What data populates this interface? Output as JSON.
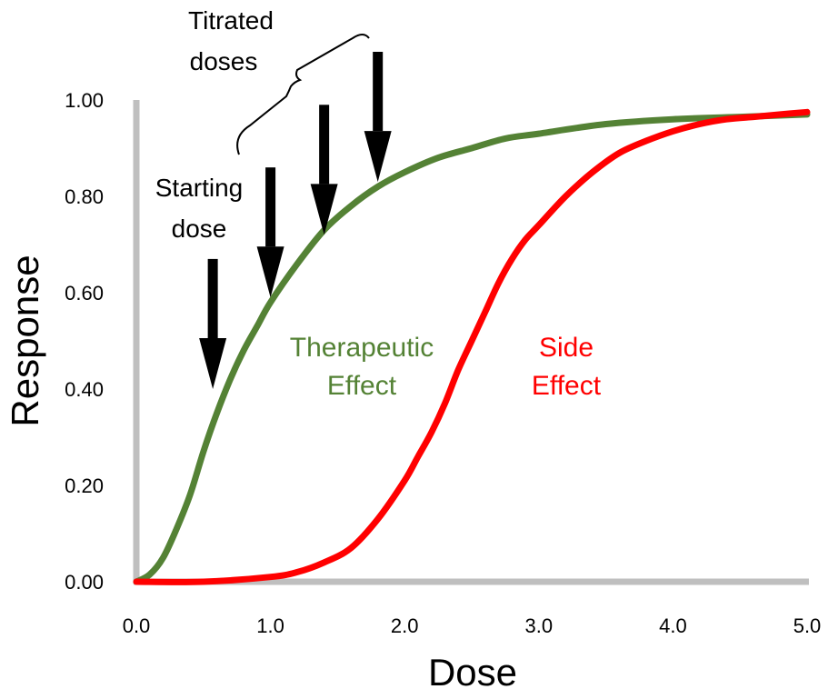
{
  "chart_data": {
    "type": "line",
    "title": "",
    "xlabel": "Dose",
    "ylabel": "Response",
    "xlim": [
      0,
      5
    ],
    "ylim": [
      0,
      1
    ],
    "x_ticks": [
      "0.0",
      "1.0",
      "2.0",
      "3.0",
      "4.0",
      "5.0"
    ],
    "y_ticks": [
      "0.00",
      "0.20",
      "0.40",
      "0.60",
      "0.80",
      "1.00"
    ],
    "grid": false,
    "legend": "none",
    "series": [
      {
        "name": "Therapeutic Effect",
        "label_lines": [
          "Therapeutic",
          "Effect"
        ],
        "color": "#548235",
        "x": [
          0.0,
          0.1,
          0.2,
          0.3,
          0.4,
          0.5,
          0.6,
          0.7,
          0.8,
          0.9,
          1.0,
          1.2,
          1.4,
          1.6,
          1.8,
          2.0,
          2.25,
          2.5,
          2.75,
          3.0,
          3.5,
          4.0,
          4.5,
          5.0
        ],
        "y": [
          0.0,
          0.015,
          0.05,
          0.11,
          0.18,
          0.27,
          0.35,
          0.42,
          0.48,
          0.53,
          0.58,
          0.66,
          0.73,
          0.78,
          0.82,
          0.85,
          0.88,
          0.9,
          0.92,
          0.93,
          0.95,
          0.96,
          0.965,
          0.97
        ]
      },
      {
        "name": "Side Effect",
        "label_lines": [
          "Side",
          "Effect"
        ],
        "color": "#ff0000",
        "x": [
          0.0,
          0.5,
          1.0,
          1.2,
          1.4,
          1.6,
          1.8,
          2.0,
          2.1,
          2.2,
          2.3,
          2.4,
          2.5,
          2.6,
          2.7,
          2.8,
          2.9,
          3.0,
          3.2,
          3.4,
          3.6,
          3.8,
          4.0,
          4.2,
          4.4,
          4.6,
          4.8,
          5.0
        ],
        "y": [
          0.0,
          0.0,
          0.01,
          0.02,
          0.04,
          0.07,
          0.13,
          0.21,
          0.26,
          0.31,
          0.37,
          0.44,
          0.5,
          0.56,
          0.62,
          0.67,
          0.71,
          0.74,
          0.8,
          0.85,
          0.89,
          0.915,
          0.935,
          0.95,
          0.96,
          0.965,
          0.97,
          0.975
        ]
      }
    ],
    "annotations": [
      {
        "id": "starting-dose",
        "lines": [
          "Starting",
          "dose"
        ]
      },
      {
        "id": "titrated-doses",
        "lines": [
          "Titrated",
          "doses"
        ]
      }
    ],
    "arrows": [
      {
        "kind": "starting",
        "dose": 0.57,
        "from_y": 0.67,
        "to_y": 0.4
      },
      {
        "kind": "titrated",
        "dose": 1.0,
        "from_y": 0.86,
        "to_y": 0.59
      },
      {
        "kind": "titrated",
        "dose": 1.4,
        "from_y": 0.99,
        "to_y": 0.72
      },
      {
        "kind": "titrated",
        "dose": 1.8,
        "from_y": 1.1,
        "to_y": 0.83
      }
    ]
  }
}
